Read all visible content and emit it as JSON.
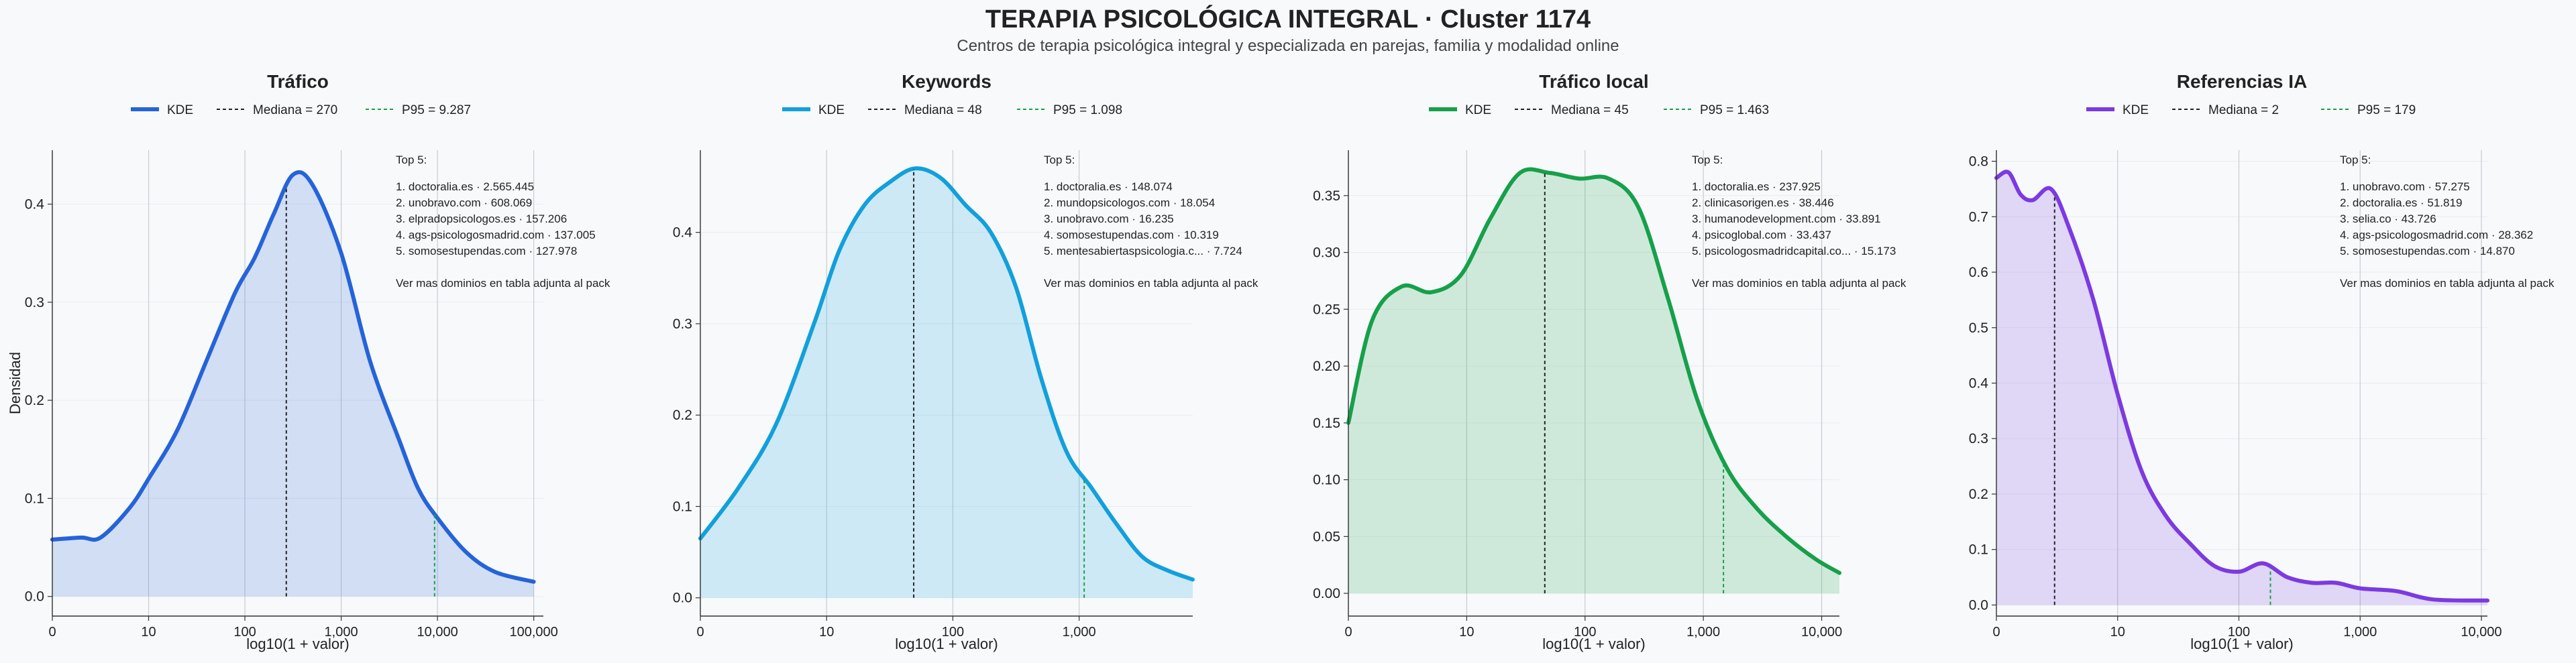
{
  "header": {
    "title": "TERAPIA PSICOLÓGICA INTEGRAL · Cluster 1174",
    "subtitle": "Centros de terapia psicológica integral y especializada en parejas, familia y modalidad online"
  },
  "colors": {
    "trafico": "#2563d9",
    "keywords": "#12a0db",
    "trafico_local": "#16a04a",
    "referencias_ia": "#7c3ae0",
    "median_line": "#222222",
    "p95_line": "#16a04a"
  },
  "chart_data": [
    {
      "type": "area",
      "title": "Tráfico",
      "xlabel": "log10(1 + valor)",
      "ylabel": "Densidad",
      "xscale": "log10(1 + x)",
      "xlim": [
        0,
        5.1
      ],
      "ylim": [
        -0.02,
        0.455
      ],
      "xticks": [
        0,
        1,
        2,
        3,
        4,
        5
      ],
      "xtick_labels": [
        "0",
        "10",
        "100",
        "1,000",
        "10,000",
        "100,000"
      ],
      "yticks": [
        0,
        0.1,
        0.2,
        0.3,
        0.4
      ],
      "ytick_labels": [
        "0.0",
        "0.1",
        "0.2",
        "0.3",
        "0.4"
      ],
      "legend": {
        "position": "top",
        "kde": "KDE",
        "median": "Mediana = 270",
        "p95": "P95 = 9.287"
      },
      "median_log": 2.43,
      "p95_log": 3.97,
      "kde_x": [
        0,
        0.3,
        0.5,
        0.8,
        1.0,
        1.3,
        1.6,
        1.9,
        2.1,
        2.3,
        2.5,
        2.7,
        3.0,
        3.3,
        3.6,
        3.8,
        4.0,
        4.3,
        4.6,
        5.0
      ],
      "kde_y": [
        0.058,
        0.06,
        0.06,
        0.09,
        0.12,
        0.17,
        0.24,
        0.31,
        0.345,
        0.39,
        0.43,
        0.42,
        0.35,
        0.24,
        0.16,
        0.11,
        0.08,
        0.045,
        0.025,
        0.015
      ],
      "top_title": "Top 5:",
      "top_list": [
        "1. doctoralia.es · 2.565.445",
        "2. unobravo.com · 608.069",
        "3. elpradopsicologos.es · 157.206",
        "4. ags-psicologosmadrid.com · 137.005",
        "5. somosestupendas.com · 127.978"
      ],
      "top_note": "Ver mas dominios en tabla adjunta al pack"
    },
    {
      "type": "area",
      "title": "Keywords",
      "xlabel": "log10(1 + valor)",
      "ylabel": "",
      "xscale": "log10(1 + x)",
      "xlim": [
        0,
        3.9
      ],
      "ylim": [
        -0.02,
        0.49
      ],
      "xticks": [
        0,
        1,
        2,
        3
      ],
      "xtick_labels": [
        "0",
        "10",
        "100",
        "1,000"
      ],
      "yticks": [
        0,
        0.1,
        0.2,
        0.3,
        0.4
      ],
      "ytick_labels": [
        "0.0",
        "0.1",
        "0.2",
        "0.3",
        "0.4"
      ],
      "legend": {
        "position": "top",
        "kde": "KDE",
        "median": "Mediana = 48",
        "p95": "P95 = 1.098"
      },
      "median_log": 1.69,
      "p95_log": 3.04,
      "kde_x": [
        0,
        0.3,
        0.6,
        0.9,
        1.1,
        1.3,
        1.5,
        1.7,
        1.9,
        2.1,
        2.3,
        2.5,
        2.7,
        2.9,
        3.1,
        3.3,
        3.5,
        3.7,
        3.9
      ],
      "kde_y": [
        0.065,
        0.12,
        0.19,
        0.3,
        0.38,
        0.43,
        0.455,
        0.47,
        0.46,
        0.43,
        0.4,
        0.34,
        0.24,
        0.16,
        0.12,
        0.08,
        0.045,
        0.03,
        0.02
      ],
      "top_title": "Top 5:",
      "top_list": [
        "1. doctoralia.es · 148.074",
        "2. mundopsicologos.com · 18.054",
        "3. unobravo.com · 16.235",
        "4. somosestupendas.com · 10.319",
        "5. mentesabiertaspsicologia.c... · 7.724"
      ],
      "top_note": "Ver mas dominios en tabla adjunta al pack"
    },
    {
      "type": "area",
      "title": "Tráfico local",
      "xlabel": "log10(1 + valor)",
      "ylabel": "",
      "xscale": "log10(1 + x)",
      "xlim": [
        0,
        4.15
      ],
      "ylim": [
        -0.02,
        0.39
      ],
      "xticks": [
        0,
        1,
        2,
        3,
        4
      ],
      "xtick_labels": [
        "0",
        "10",
        "100",
        "1,000",
        "10,000"
      ],
      "yticks": [
        0,
        0.05,
        0.1,
        0.15,
        0.2,
        0.25,
        0.3,
        0.35
      ],
      "ytick_labels": [
        "0.00",
        "0.05",
        "0.10",
        "0.15",
        "0.20",
        "0.25",
        "0.30",
        "0.35"
      ],
      "legend": {
        "position": "top",
        "kde": "KDE",
        "median": "Mediana = 45",
        "p95": "P95 = 1.463"
      },
      "median_log": 1.66,
      "p95_log": 3.17,
      "kde_x": [
        0,
        0.2,
        0.45,
        0.7,
        0.95,
        1.2,
        1.45,
        1.7,
        1.95,
        2.2,
        2.45,
        2.7,
        2.95,
        3.2,
        3.45,
        3.7,
        3.95,
        4.15
      ],
      "kde_y": [
        0.15,
        0.24,
        0.27,
        0.265,
        0.28,
        0.33,
        0.37,
        0.37,
        0.365,
        0.365,
        0.34,
        0.26,
        0.17,
        0.11,
        0.075,
        0.05,
        0.03,
        0.018
      ],
      "top_title": "Top 5:",
      "top_list": [
        "1. doctoralia.es · 237.925",
        "2. clinicasorigen.es · 38.446",
        "3. humanodevelopment.com · 33.891",
        "4. psicoglobal.com · 33.437",
        "5. psicologosmadridcapital.co... · 15.173"
      ],
      "top_note": "Ver mas dominios en tabla adjunta al pack"
    },
    {
      "type": "area",
      "title": "Referencias IA",
      "xlabel": "log10(1 + valor)",
      "ylabel": "",
      "xscale": "log10(1 + x)",
      "xlim": [
        0,
        4.05
      ],
      "ylim": [
        -0.02,
        0.82
      ],
      "xticks": [
        0,
        1,
        2,
        3,
        4
      ],
      "xtick_labels": [
        "0",
        "10",
        "100",
        "1,000",
        "10,000"
      ],
      "yticks": [
        0,
        0.1,
        0.2,
        0.3,
        0.4,
        0.5,
        0.6,
        0.7,
        0.8
      ],
      "ytick_labels": [
        "0.0",
        "0.1",
        "0.2",
        "0.3",
        "0.4",
        "0.5",
        "0.6",
        "0.7",
        "0.8"
      ],
      "legend": {
        "position": "top",
        "kde": "KDE",
        "median": "Mediana = 2",
        "p95": "P95 = 179"
      },
      "median_log": 0.48,
      "p95_log": 2.26,
      "kde_x": [
        0,
        0.1,
        0.2,
        0.3,
        0.45,
        0.6,
        0.8,
        1.0,
        1.2,
        1.4,
        1.6,
        1.8,
        2.0,
        2.2,
        2.4,
        2.6,
        2.8,
        3.0,
        3.3,
        3.6,
        4.05
      ],
      "kde_y": [
        0.77,
        0.78,
        0.74,
        0.73,
        0.75,
        0.68,
        0.55,
        0.38,
        0.24,
        0.16,
        0.11,
        0.07,
        0.06,
        0.075,
        0.05,
        0.04,
        0.04,
        0.03,
        0.025,
        0.01,
        0.008
      ],
      "top_title": "Top 5:",
      "top_list": [
        "1. unobravo.com · 57.275",
        "2. doctoralia.es · 51.819",
        "3. selia.co · 43.726",
        "4. ags-psicologosmadrid.com · 28.362",
        "5. somosestupendas.com · 14.870"
      ],
      "top_note": "Ver mas dominios en tabla adjunta al pack"
    }
  ]
}
